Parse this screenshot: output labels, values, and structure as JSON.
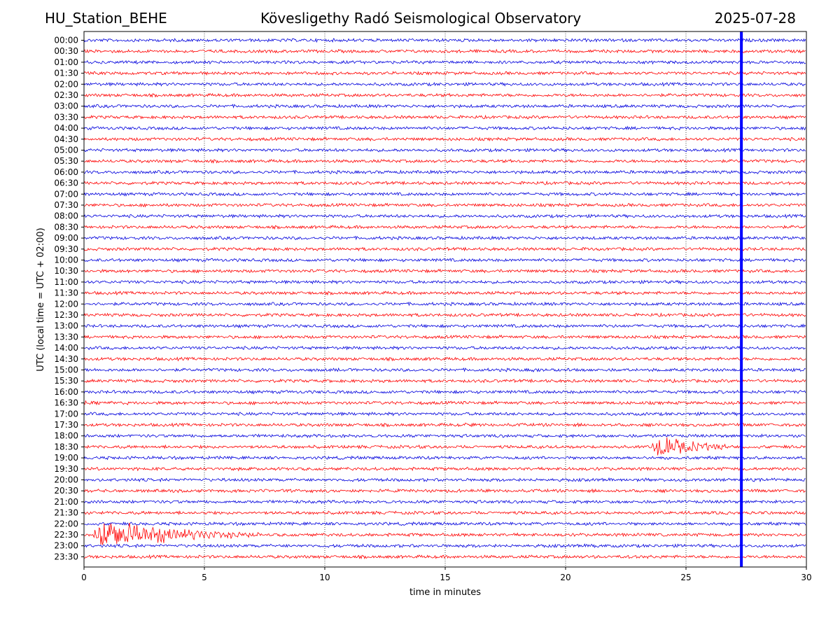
{
  "header": {
    "station": "HU_Station_BEHE",
    "observatory": "Kövesligethy Radó Seismological Observatory",
    "date": "2025-07-28"
  },
  "chart_data": {
    "type": "line",
    "title": "Kövesligethy Radó Seismological Observatory",
    "xlabel": "time in minutes",
    "ylabel": "UTC (local time = UTC + 02:00)",
    "xlim": [
      0,
      30
    ],
    "xticks": [
      "0",
      "5",
      "10",
      "15",
      "20",
      "25",
      "30"
    ],
    "grid": "vertical dotted at x ticks",
    "row_labels": [
      "00:00",
      "00:30",
      "01:00",
      "01:30",
      "02:00",
      "02:30",
      "03:00",
      "03:30",
      "04:00",
      "04:30",
      "05:00",
      "05:30",
      "06:00",
      "06:30",
      "07:00",
      "07:30",
      "08:00",
      "08:30",
      "09:00",
      "09:30",
      "10:00",
      "10:30",
      "11:00",
      "11:30",
      "12:00",
      "12:30",
      "13:00",
      "13:30",
      "14:00",
      "14:30",
      "15:00",
      "15:30",
      "16:00",
      "16:30",
      "17:00",
      "17:30",
      "18:00",
      "18:30",
      "19:00",
      "19:30",
      "20:00",
      "20:30",
      "21:00",
      "21:30",
      "22:00",
      "22:30",
      "23:00",
      "23:30"
    ],
    "trace_colors": [
      "#0000dd",
      "#ff0000"
    ],
    "marker_line": {
      "x": 27.3,
      "color": "#0000ff"
    },
    "events": [
      {
        "row": "16:30",
        "start": 0.0,
        "end": 1.5,
        "amplitude": 0.45
      },
      {
        "row": "17:30",
        "start": 15.8,
        "end": 16.1,
        "amplitude": 0.4
      },
      {
        "row": "18:30",
        "start": 23.6,
        "end": 27.5,
        "amplitude": 2.2
      },
      {
        "row": "15:00",
        "start": 10.3,
        "end": 10.8,
        "amplitude": 0.3
      },
      {
        "row": "15:00",
        "start": 18.5,
        "end": 20.5,
        "amplitude": 0.35
      },
      {
        "row": "15:00",
        "start": 22.5,
        "end": 24.0,
        "amplitude": 0.3
      },
      {
        "row": "09:30",
        "start": 20.8,
        "end": 21.5,
        "amplitude": 0.3
      },
      {
        "row": "22:30",
        "start": 0.4,
        "end": 7.5,
        "amplitude": 3.0
      },
      {
        "row": "23:30",
        "start": 22.5,
        "end": 23.8,
        "amplitude": 0.3
      },
      {
        "row": "23:00",
        "start": 21.0,
        "end": 21.7,
        "amplitude": 0.3
      }
    ]
  }
}
